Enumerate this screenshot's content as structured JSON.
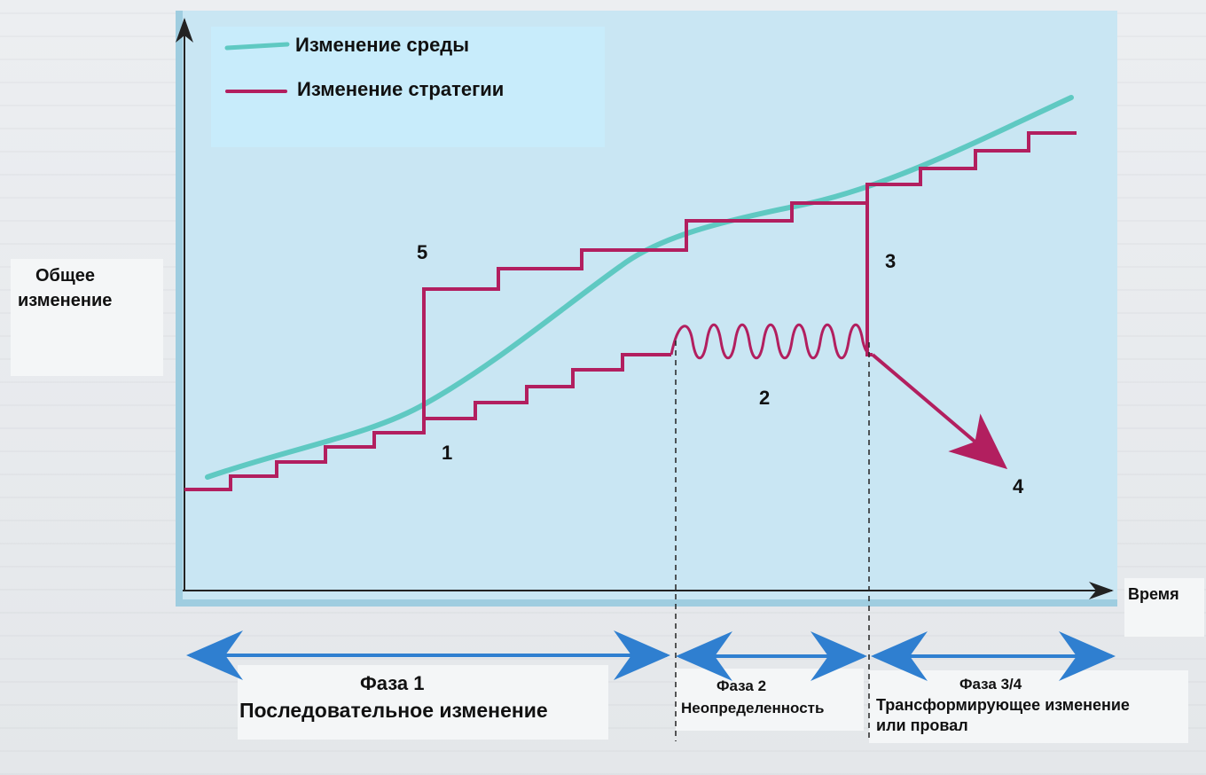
{
  "legend": {
    "env_label": "Изменение среды",
    "strategy_label": "Изменение стратегии",
    "env_color": "#5fc9c2",
    "strategy_color": "#b21f5f"
  },
  "axes": {
    "y_label_line1": "Общее",
    "y_label_line2": "изменение",
    "x_label": "Время"
  },
  "markers": {
    "m1": "1",
    "m2": "2",
    "m3": "3",
    "m4": "4",
    "m5": "5"
  },
  "phases": {
    "phase1_title": "Фаза 1",
    "phase1_sub": "Последовательное изменение",
    "phase2_title": "Фаза 2",
    "phase2_sub": "Неопределенность",
    "phase34_title": "Фаза 3/4",
    "phase34_sub1": "Трансформирующее изменение",
    "phase34_sub2": "или провал"
  },
  "colors": {
    "arrow": "#2f7fd0",
    "axis": "#222222"
  }
}
